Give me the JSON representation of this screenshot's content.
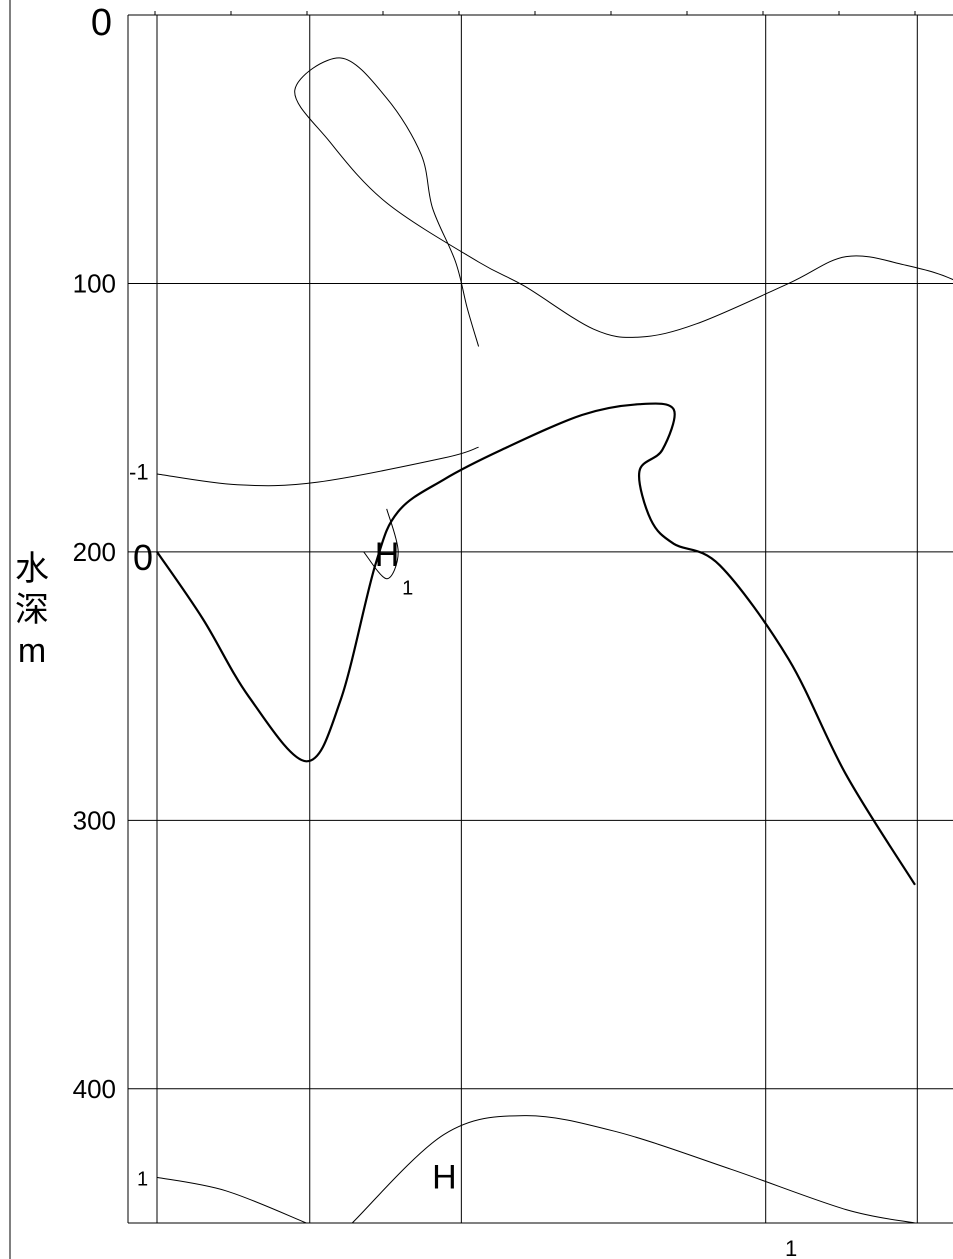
{
  "chart_data": {
    "type": "line",
    "title": "",
    "ylabel_chars": [
      "水",
      "深",
      "m"
    ],
    "ylim": [
      0,
      450
    ],
    "y_ticks": [
      {
        "value": 0,
        "label": "0"
      },
      {
        "value": 100,
        "label": "100"
      },
      {
        "value": 200,
        "label": "200"
      },
      {
        "value": 300,
        "label": "300"
      },
      {
        "value": 400,
        "label": "400"
      }
    ],
    "x_tick_label": "1",
    "grid": true,
    "contours": [
      {
        "label": "-1",
        "points": [
          [
            0.28,
            123.5
          ],
          [
            0.27,
            109
          ],
          [
            0.26,
            92
          ],
          [
            0.24,
            72
          ],
          [
            0.23,
            52
          ],
          [
            0.2,
            31
          ],
          [
            0.16,
            16
          ],
          [
            0.12,
            28
          ],
          [
            0.15,
            47
          ],
          [
            0.2,
            70
          ],
          [
            0.28,
            92
          ],
          [
            0.32,
            101
          ],
          [
            0.38,
            117
          ],
          [
            0.42,
            120
          ],
          [
            0.47,
            115
          ],
          [
            0.55,
            100
          ],
          [
            0.6,
            90
          ],
          [
            0.65,
            93
          ],
          [
            0.7,
            100
          ],
          [
            0.75,
            116
          ]
        ]
      },
      {
        "label": "-1_left",
        "points": [
          [
            0.0,
            171
          ],
          [
            0.07,
            175
          ],
          [
            0.14,
            174
          ],
          [
            0.25,
            165
          ],
          [
            0.28,
            161
          ]
        ]
      },
      {
        "label": "0",
        "bold": true,
        "points": [
          [
            0.0,
            200
          ],
          [
            0.04,
            225
          ],
          [
            0.08,
            254
          ],
          [
            0.13,
            278
          ],
          [
            0.16,
            255
          ],
          [
            0.19,
            205
          ],
          [
            0.21,
            185
          ],
          [
            0.25,
            173
          ],
          [
            0.3,
            162
          ],
          [
            0.37,
            149
          ],
          [
            0.42,
            145
          ],
          [
            0.45,
            147
          ],
          [
            0.44,
            162
          ],
          [
            0.42,
            170
          ],
          [
            0.43,
            188
          ],
          [
            0.45,
            197
          ],
          [
            0.49,
            205
          ],
          [
            0.55,
            240
          ],
          [
            0.6,
            283
          ],
          [
            0.66,
            324
          ]
        ]
      },
      {
        "label": "H1_small",
        "points": [
          [
            0.2,
            184
          ],
          [
            0.21,
            200
          ],
          [
            0.2,
            210
          ],
          [
            0.18,
            200
          ]
        ]
      },
      {
        "label": "1",
        "points": [
          [
            0.0,
            433
          ],
          [
            0.06,
            438
          ],
          [
            0.13,
            450
          ]
        ]
      },
      {
        "label": "H_bottom",
        "points": [
          [
            0.17,
            450
          ],
          [
            0.25,
            417
          ],
          [
            0.32,
            410
          ],
          [
            0.4,
            416
          ],
          [
            0.5,
            430
          ],
          [
            0.6,
            445
          ],
          [
            0.66,
            450
          ]
        ]
      }
    ],
    "annotations": [
      {
        "text": "-1",
        "x": 0.0,
        "y": 170
      },
      {
        "text": "0",
        "x": 0.0,
        "y": 200
      },
      {
        "text": "H",
        "x": 0.2,
        "y": 200
      },
      {
        "text": "1",
        "x": 0.21,
        "y": 210
      },
      {
        "text": "1",
        "x": 0.0,
        "y": 433
      },
      {
        "text": "H",
        "x": 0.25,
        "y": 432
      }
    ]
  }
}
